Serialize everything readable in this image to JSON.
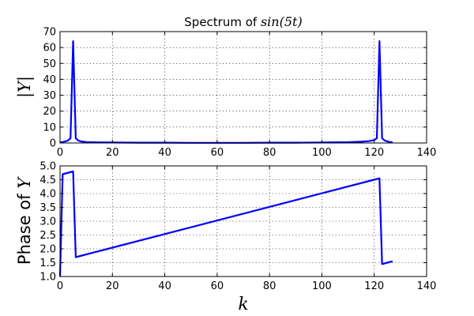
{
  "chart_data": [
    {
      "type": "line",
      "title": "Spectrum of sin(5t)",
      "title_parts": {
        "prefix": "Spectrum of ",
        "math": "sin(5t)"
      },
      "xlabel": "",
      "ylabel": "|Y|",
      "xlim": [
        0,
        140
      ],
      "ylim": [
        0,
        70
      ],
      "xticks": [
        0,
        20,
        40,
        60,
        80,
        100,
        120,
        140
      ],
      "yticks": [
        0,
        10,
        20,
        30,
        40,
        50,
        60,
        70
      ],
      "xtick_labels": [
        "0",
        "20",
        "40",
        "60",
        "80",
        "100",
        "120",
        "140"
      ],
      "ytick_labels": [
        "0",
        "10",
        "20",
        "30",
        "40",
        "50",
        "60",
        "70"
      ],
      "grid": true,
      "color": "#0000ff",
      "series": [
        {
          "name": "|Y|",
          "x": [
            0,
            1,
            2,
            3,
            4,
            5,
            6,
            7,
            8,
            10,
            15,
            20,
            30,
            40,
            50,
            60,
            64,
            70,
            80,
            90,
            100,
            110,
            115,
            118,
            120,
            121,
            122,
            123,
            124,
            125,
            126,
            127
          ],
          "values": [
            0.4,
            0.6,
            1.0,
            1.5,
            3.0,
            64.0,
            3.0,
            1.5,
            1.0,
            0.6,
            0.4,
            0.3,
            0.2,
            0.2,
            0.1,
            0.1,
            0.1,
            0.1,
            0.2,
            0.2,
            0.3,
            0.5,
            0.8,
            1.2,
            1.8,
            3.0,
            64.0,
            3.0,
            1.5,
            1.0,
            0.6,
            0.4
          ]
        }
      ]
    },
    {
      "type": "line",
      "title": "",
      "xlabel": "k",
      "ylabel": "Phase of Y",
      "ylabel_parts": {
        "prefix": "Phase of ",
        "math": "Y"
      },
      "xlim": [
        0,
        140
      ],
      "ylim": [
        1.0,
        5.0
      ],
      "xticks": [
        0,
        20,
        40,
        60,
        80,
        100,
        120,
        140
      ],
      "yticks": [
        1.0,
        1.5,
        2.0,
        2.5,
        3.0,
        3.5,
        4.0,
        4.5,
        5.0
      ],
      "xtick_labels": [
        "0",
        "20",
        "40",
        "60",
        "80",
        "100",
        "120",
        "140"
      ],
      "ytick_labels": [
        "1.0",
        "1.5",
        "2.0",
        "2.5",
        "3.0",
        "3.5",
        "4.0",
        "4.5",
        "5.0"
      ],
      "grid": true,
      "color": "#0000ff",
      "series": [
        {
          "name": "Phase of Y",
          "x": [
            0,
            1,
            5,
            6,
            122,
            123,
            127
          ],
          "values": [
            1.0,
            4.7,
            4.8,
            1.7,
            4.55,
            1.45,
            1.55
          ]
        }
      ]
    }
  ]
}
